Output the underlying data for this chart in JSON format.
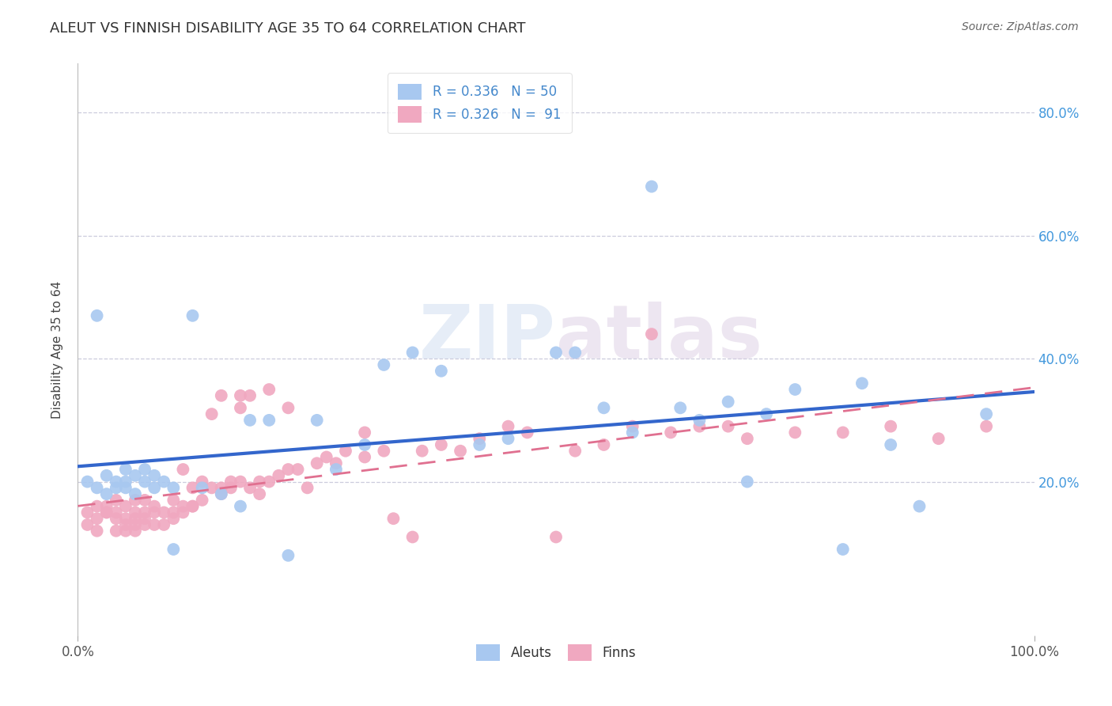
{
  "title": "ALEUT VS FINNISH DISABILITY AGE 35 TO 64 CORRELATION CHART",
  "source": "Source: ZipAtlas.com",
  "ylabel": "Disability Age 35 to 64",
  "y_ticks": [
    0.0,
    0.1,
    0.2,
    0.3,
    0.4,
    0.5,
    0.6,
    0.7,
    0.8
  ],
  "y_tick_labels": [
    "",
    "",
    "20.0%",
    "",
    "40.0%",
    "",
    "60.0%",
    "",
    "80.0%"
  ],
  "xlim": [
    0.0,
    1.0
  ],
  "ylim": [
    -0.05,
    0.88
  ],
  "aleut_R": 0.336,
  "aleut_N": 50,
  "finn_R": 0.326,
  "finn_N": 91,
  "watermark": "ZIPAtlas",
  "aleut_color": "#a8c8f0",
  "finn_color": "#f0a8c0",
  "aleut_line_color": "#3366cc",
  "finn_line_color": "#e07090",
  "aleut_x": [
    0.01,
    0.02,
    0.02,
    0.03,
    0.03,
    0.04,
    0.04,
    0.05,
    0.05,
    0.05,
    0.06,
    0.06,
    0.07,
    0.07,
    0.08,
    0.08,
    0.09,
    0.1,
    0.1,
    0.12,
    0.13,
    0.15,
    0.17,
    0.18,
    0.2,
    0.22,
    0.25,
    0.27,
    0.3,
    0.32,
    0.35,
    0.38,
    0.42,
    0.45,
    0.5,
    0.52,
    0.55,
    0.58,
    0.6,
    0.63,
    0.65,
    0.68,
    0.7,
    0.72,
    0.75,
    0.8,
    0.82,
    0.85,
    0.88,
    0.95
  ],
  "aleut_y": [
    0.2,
    0.19,
    0.47,
    0.18,
    0.21,
    0.19,
    0.2,
    0.19,
    0.2,
    0.22,
    0.18,
    0.21,
    0.2,
    0.22,
    0.19,
    0.21,
    0.2,
    0.09,
    0.19,
    0.47,
    0.19,
    0.18,
    0.16,
    0.3,
    0.3,
    0.08,
    0.3,
    0.22,
    0.26,
    0.39,
    0.41,
    0.38,
    0.26,
    0.27,
    0.41,
    0.41,
    0.32,
    0.28,
    0.68,
    0.32,
    0.3,
    0.33,
    0.2,
    0.31,
    0.35,
    0.09,
    0.36,
    0.26,
    0.16,
    0.31
  ],
  "finn_x": [
    0.01,
    0.01,
    0.02,
    0.02,
    0.02,
    0.03,
    0.03,
    0.03,
    0.04,
    0.04,
    0.04,
    0.04,
    0.05,
    0.05,
    0.05,
    0.05,
    0.06,
    0.06,
    0.06,
    0.06,
    0.06,
    0.07,
    0.07,
    0.07,
    0.07,
    0.08,
    0.08,
    0.08,
    0.09,
    0.09,
    0.1,
    0.1,
    0.1,
    0.11,
    0.11,
    0.11,
    0.12,
    0.12,
    0.12,
    0.13,
    0.13,
    0.14,
    0.14,
    0.15,
    0.15,
    0.15,
    0.16,
    0.16,
    0.17,
    0.17,
    0.17,
    0.18,
    0.18,
    0.19,
    0.19,
    0.2,
    0.2,
    0.21,
    0.22,
    0.22,
    0.23,
    0.24,
    0.25,
    0.26,
    0.27,
    0.28,
    0.3,
    0.3,
    0.32,
    0.33,
    0.35,
    0.36,
    0.38,
    0.4,
    0.42,
    0.45,
    0.47,
    0.5,
    0.52,
    0.55,
    0.58,
    0.6,
    0.62,
    0.65,
    0.68,
    0.7,
    0.75,
    0.8,
    0.85,
    0.9,
    0.95
  ],
  "finn_y": [
    0.13,
    0.15,
    0.14,
    0.16,
    0.12,
    0.15,
    0.15,
    0.16,
    0.12,
    0.14,
    0.15,
    0.17,
    0.12,
    0.13,
    0.14,
    0.16,
    0.12,
    0.13,
    0.14,
    0.15,
    0.17,
    0.13,
    0.14,
    0.15,
    0.17,
    0.13,
    0.15,
    0.16,
    0.13,
    0.15,
    0.14,
    0.15,
    0.17,
    0.15,
    0.16,
    0.22,
    0.16,
    0.19,
    0.16,
    0.17,
    0.2,
    0.19,
    0.31,
    0.18,
    0.19,
    0.34,
    0.19,
    0.2,
    0.2,
    0.32,
    0.34,
    0.19,
    0.34,
    0.18,
    0.2,
    0.2,
    0.35,
    0.21,
    0.32,
    0.22,
    0.22,
    0.19,
    0.23,
    0.24,
    0.23,
    0.25,
    0.24,
    0.28,
    0.25,
    0.14,
    0.11,
    0.25,
    0.26,
    0.25,
    0.27,
    0.29,
    0.28,
    0.11,
    0.25,
    0.26,
    0.29,
    0.44,
    0.28,
    0.29,
    0.29,
    0.27,
    0.28,
    0.28,
    0.29,
    0.27,
    0.29
  ]
}
